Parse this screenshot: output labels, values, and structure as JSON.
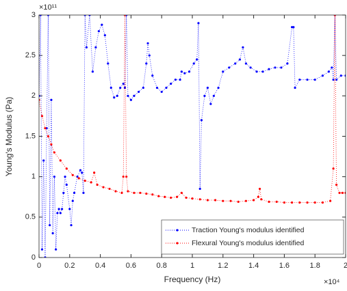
{
  "chart_data": {
    "type": "line",
    "xlabel": "Frequency (Hz)",
    "ylabel": "Young's Modulus (Pa)",
    "x_multiplier": "×10⁴",
    "y_multiplier": "×10¹¹",
    "xlim": [
      0,
      2
    ],
    "xticks": [
      0,
      0.2,
      0.4,
      0.6,
      0.8,
      1,
      1.2,
      1.4,
      1.6,
      1.8,
      2
    ],
    "ylim": [
      0,
      3
    ],
    "yticks": [
      0,
      0.5,
      1,
      1.5,
      2,
      2.5,
      3
    ],
    "legend": "lower right",
    "series": [
      {
        "name": "Traction Young's modulus identified",
        "color": "#0000ff",
        "x": [
          0,
          0.01,
          0.02,
          0.03,
          0.04,
          0.05,
          0.06,
          0.07,
          0.08,
          0.09,
          0.1,
          0.11,
          0.12,
          0.13,
          0.14,
          0.15,
          0.16,
          0.17,
          0.18,
          0.2,
          0.21,
          0.22,
          0.23,
          0.25,
          0.27,
          0.28,
          0.29,
          0.3,
          0.31,
          0.33,
          0.35,
          0.37,
          0.39,
          0.41,
          0.43,
          0.45,
          0.47,
          0.49,
          0.51,
          0.53,
          0.55,
          0.56,
          0.57,
          0.58,
          0.6,
          0.62,
          0.65,
          0.68,
          0.7,
          0.71,
          0.72,
          0.74,
          0.77,
          0.8,
          0.83,
          0.86,
          0.89,
          0.92,
          0.93,
          0.95,
          0.98,
          1.01,
          1.03,
          1.04,
          1.05,
          1.06,
          1.08,
          1.1,
          1.12,
          1.14,
          1.17,
          1.2,
          1.24,
          1.28,
          1.31,
          1.33,
          1.35,
          1.38,
          1.42,
          1.46,
          1.5,
          1.54,
          1.58,
          1.62,
          1.65,
          1.66,
          1.67,
          1.7,
          1.75,
          1.8,
          1.85,
          1.89,
          1.91,
          1.92,
          1.93,
          1.94,
          1.97,
          2
        ],
        "values": [
          2.0,
          3.0,
          0.1,
          1.2,
          0,
          1.6,
          3.0,
          0.4,
          1.95,
          0.3,
          1.0,
          0.1,
          0.55,
          0.6,
          0.55,
          0.6,
          0.8,
          1.0,
          0.9,
          0.6,
          0.4,
          0.7,
          0.8,
          1.0,
          1.08,
          1.05,
          0.8,
          3.0,
          2.6,
          3.0,
          2.3,
          2.6,
          2.8,
          2.88,
          2.75,
          2.4,
          2.1,
          1.98,
          2.0,
          2.1,
          2.15,
          2.1,
          3.0,
          2.0,
          1.95,
          2.0,
          2.05,
          2.1,
          2.4,
          2.65,
          2.5,
          2.25,
          2.1,
          2.05,
          2.1,
          2.15,
          2.2,
          2.2,
          2.3,
          2.28,
          2.3,
          2.4,
          2.45,
          2.9,
          0.85,
          1.7,
          2.0,
          2.1,
          1.9,
          2.0,
          2.1,
          2.3,
          2.35,
          2.4,
          2.45,
          2.6,
          2.4,
          2.35,
          2.3,
          2.3,
          2.33,
          2.35,
          2.35,
          2.4,
          2.85,
          2.85,
          2.1,
          2.2,
          2.2,
          2.2,
          2.25,
          2.3,
          2.35,
          2.2,
          3.0,
          2.2,
          2.25,
          2.25
        ]
      },
      {
        "name": "Flexural Young's modulus identified",
        "color": "#ff0000",
        "x": [
          0,
          0.02,
          0.04,
          0.06,
          0.08,
          0.1,
          0.14,
          0.18,
          0.22,
          0.26,
          0.3,
          0.34,
          0.36,
          0.38,
          0.42,
          0.46,
          0.5,
          0.54,
          0.55,
          0.56,
          0.57,
          0.58,
          0.62,
          0.66,
          0.7,
          0.74,
          0.78,
          0.82,
          0.86,
          0.9,
          0.93,
          0.96,
          1,
          1.05,
          1.1,
          1.15,
          1.2,
          1.25,
          1.3,
          1.35,
          1.4,
          1.43,
          1.44,
          1.45,
          1.5,
          1.55,
          1.6,
          1.65,
          1.7,
          1.75,
          1.8,
          1.85,
          1.9,
          1.92,
          1.93,
          1.94,
          1.96,
          1.98,
          2
        ],
        "values": [
          1.95,
          1.75,
          1.6,
          1.5,
          1.4,
          1.3,
          1.2,
          1.1,
          1.02,
          0.98,
          0.95,
          0.93,
          1.05,
          0.9,
          0.87,
          0.85,
          0.82,
          0.8,
          1.0,
          3.0,
          1.0,
          0.82,
          0.8,
          0.8,
          0.79,
          0.78,
          0.76,
          0.75,
          0.74,
          0.75,
          0.8,
          0.74,
          0.73,
          0.72,
          0.71,
          0.71,
          0.7,
          0.7,
          0.69,
          0.7,
          0.71,
          0.75,
          0.85,
          0.72,
          0.69,
          0.69,
          0.68,
          0.68,
          0.68,
          0.68,
          0.68,
          0.68,
          0.7,
          1.1,
          3.0,
          0.9,
          0.8,
          0.8,
          0.8
        ]
      }
    ]
  }
}
